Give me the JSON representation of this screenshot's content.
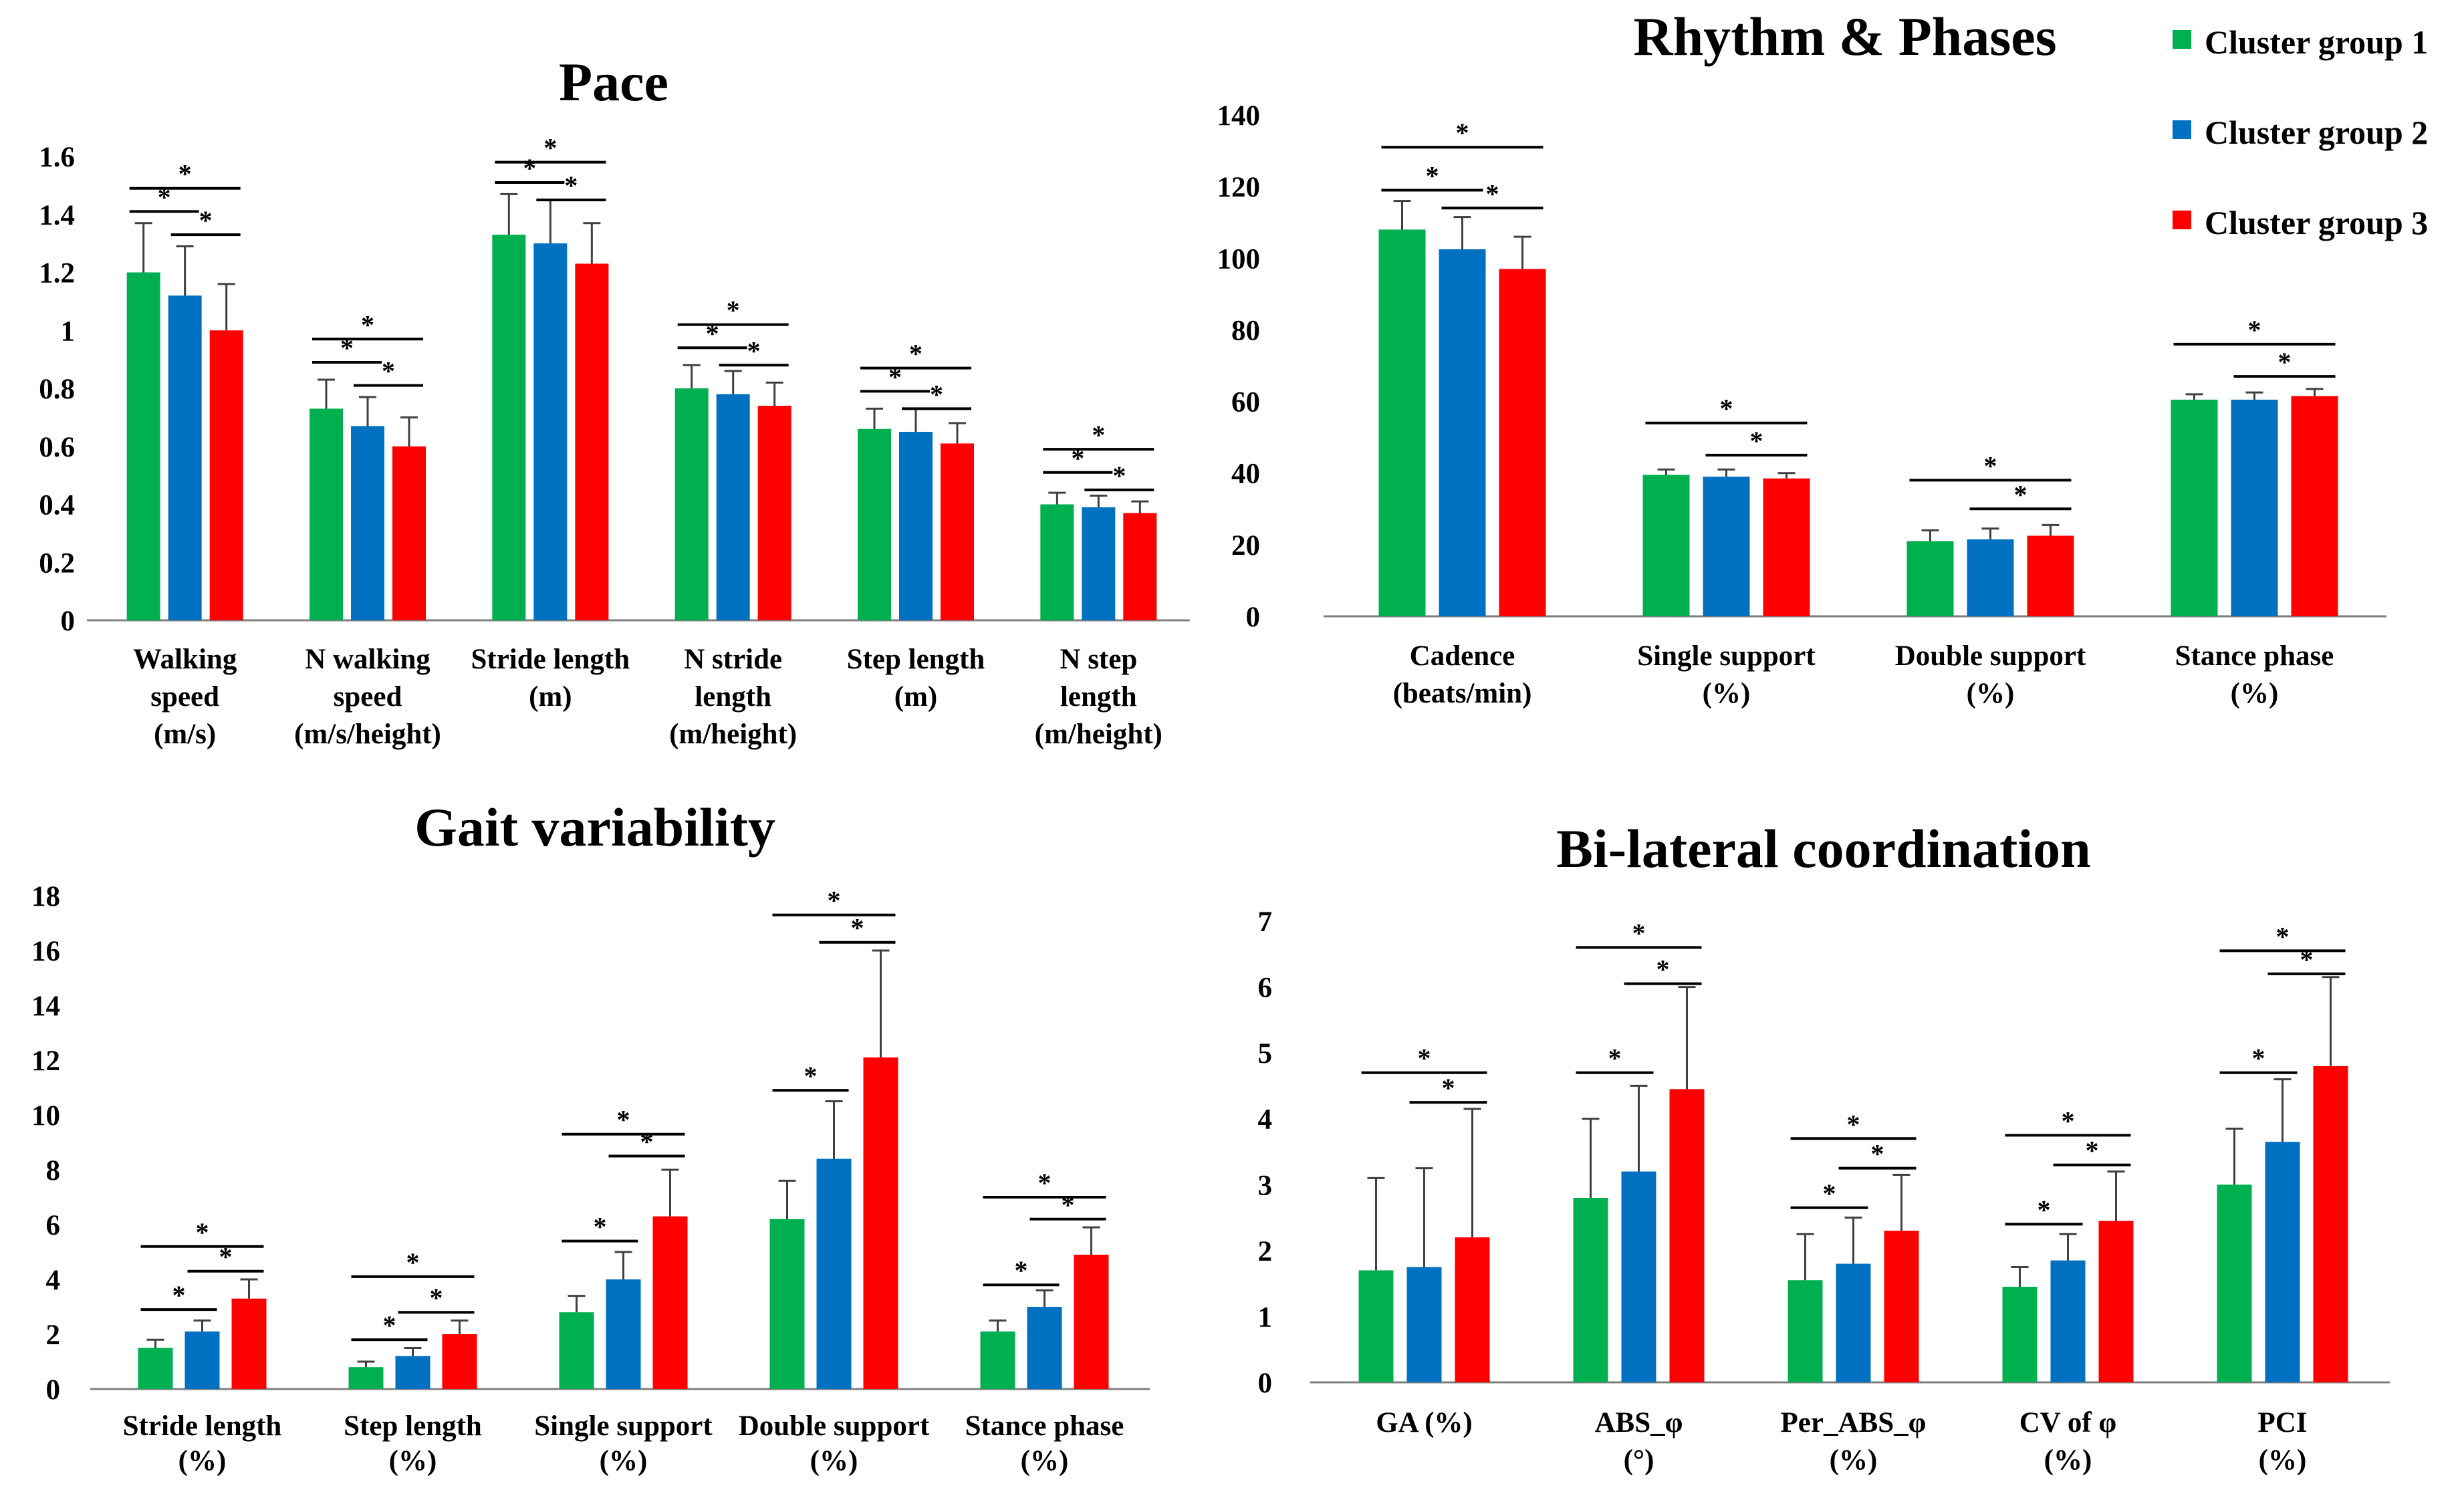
{
  "figure": {
    "legend": [
      {
        "name": "Cluster group 1",
        "color": "#00B050"
      },
      {
        "name": "Cluster group 2",
        "color": "#0070C0"
      },
      {
        "name": "Cluster group 3",
        "color": "#FF0000"
      }
    ]
  },
  "chart_data": [
    {
      "id": "pace",
      "type": "bar",
      "title": "Pace",
      "ylim": [
        0,
        1.6
      ],
      "yticks": [
        "0",
        "0.2",
        "0.4",
        "0.6",
        "0.8",
        "1",
        "1.2",
        "1.4",
        "1.6"
      ],
      "categories": [
        [
          "Walking",
          "speed",
          "(m/s)"
        ],
        [
          "N walking",
          "speed",
          "(m/s/height)"
        ],
        [
          "Stride length",
          "(m)"
        ],
        [
          "N stride",
          "length",
          "(m/height)"
        ],
        [
          "Step length",
          "(m)"
        ],
        [
          "N step",
          "length",
          "(m/height)"
        ]
      ],
      "series": [
        {
          "name": "Cluster group 1",
          "values": [
            1.2,
            0.73,
            1.33,
            0.8,
            0.66,
            0.4
          ],
          "error": [
            0.17,
            0.1,
            0.14,
            0.08,
            0.07,
            0.04
          ]
        },
        {
          "name": "Cluster group 2",
          "values": [
            1.12,
            0.67,
            1.3,
            0.78,
            0.65,
            0.39
          ],
          "error": [
            0.17,
            0.1,
            0.15,
            0.08,
            0.08,
            0.04
          ]
        },
        {
          "name": "Cluster group 3",
          "values": [
            1.0,
            0.6,
            1.23,
            0.74,
            0.61,
            0.37
          ],
          "error": [
            0.16,
            0.1,
            0.14,
            0.08,
            0.07,
            0.04
          ]
        }
      ],
      "significance": [
        {
          "cat": 0,
          "from": 0,
          "to": 1,
          "y": 1.41,
          "label": "*"
        },
        {
          "cat": 0,
          "from": 1,
          "to": 2,
          "y": 1.33,
          "label": "*"
        },
        {
          "cat": 0,
          "from": 0,
          "to": 2,
          "y": 1.49,
          "label": "*"
        },
        {
          "cat": 1,
          "from": 0,
          "to": 1,
          "y": 0.89,
          "label": "*"
        },
        {
          "cat": 1,
          "from": 1,
          "to": 2,
          "y": 0.81,
          "label": "*"
        },
        {
          "cat": 1,
          "from": 0,
          "to": 2,
          "y": 0.97,
          "label": "*"
        },
        {
          "cat": 2,
          "from": 0,
          "to": 1,
          "y": 1.51,
          "label": "*"
        },
        {
          "cat": 2,
          "from": 1,
          "to": 2,
          "y": 1.45,
          "label": "*"
        },
        {
          "cat": 2,
          "from": 0,
          "to": 2,
          "y": 1.58,
          "label": "*"
        },
        {
          "cat": 3,
          "from": 0,
          "to": 1,
          "y": 0.94,
          "label": "*"
        },
        {
          "cat": 3,
          "from": 1,
          "to": 2,
          "y": 0.88,
          "label": "*"
        },
        {
          "cat": 3,
          "from": 0,
          "to": 2,
          "y": 1.02,
          "label": "*"
        },
        {
          "cat": 4,
          "from": 0,
          "to": 1,
          "y": 0.79,
          "label": "*"
        },
        {
          "cat": 4,
          "from": 1,
          "to": 2,
          "y": 0.73,
          "label": "*"
        },
        {
          "cat": 4,
          "from": 0,
          "to": 2,
          "y": 0.87,
          "label": "*"
        },
        {
          "cat": 5,
          "from": 0,
          "to": 1,
          "y": 0.51,
          "label": "*"
        },
        {
          "cat": 5,
          "from": 1,
          "to": 2,
          "y": 0.45,
          "label": "*"
        },
        {
          "cat": 5,
          "from": 0,
          "to": 2,
          "y": 0.59,
          "label": "*"
        }
      ]
    },
    {
      "id": "rhythm",
      "type": "bar",
      "title": "Rhythm & Phases",
      "ylim": [
        0,
        140
      ],
      "yticks": [
        "0",
        "20",
        "40",
        "60",
        "80",
        "100",
        "120",
        "140"
      ],
      "categories": [
        [
          "Cadence",
          "(beats/min)"
        ],
        [
          "Single support",
          "(%)"
        ],
        [
          "Double support",
          "(%)"
        ],
        [
          "Stance phase",
          "(%)"
        ]
      ],
      "series": [
        {
          "name": "Cluster group 1",
          "values": [
            108,
            39.5,
            21,
            60.5
          ],
          "error": [
            8,
            1.5,
            3,
            1.5
          ]
        },
        {
          "name": "Cluster group 2",
          "values": [
            102.5,
            39,
            21.5,
            60.5
          ],
          "error": [
            9,
            2,
            3,
            2
          ]
        },
        {
          "name": "Cluster group 3",
          "values": [
            97,
            38.5,
            22.5,
            61.5
          ],
          "error": [
            9,
            1.5,
            3,
            2
          ]
        }
      ],
      "significance": [
        {
          "cat": 0,
          "from": 0,
          "to": 1,
          "y": 119,
          "label": "*"
        },
        {
          "cat": 0,
          "from": 1,
          "to": 2,
          "y": 114,
          "label": "*"
        },
        {
          "cat": 0,
          "from": 0,
          "to": 2,
          "y": 131,
          "label": "*"
        },
        {
          "cat": 1,
          "from": 1,
          "to": 2,
          "y": 45,
          "label": "*"
        },
        {
          "cat": 1,
          "from": 0,
          "to": 2,
          "y": 54,
          "label": "*"
        },
        {
          "cat": 2,
          "from": 1,
          "to": 2,
          "y": 30,
          "label": "*"
        },
        {
          "cat": 2,
          "from": 0,
          "to": 2,
          "y": 38,
          "label": "*"
        },
        {
          "cat": 3,
          "from": 1,
          "to": 2,
          "y": 67,
          "label": "*"
        },
        {
          "cat": 3,
          "from": 0,
          "to": 2,
          "y": 76,
          "label": "*"
        }
      ]
    },
    {
      "id": "variability",
      "type": "bar",
      "title": "Gait variability",
      "ylim": [
        0,
        18
      ],
      "yticks": [
        "0",
        "2",
        "4",
        "6",
        "8",
        "10",
        "12",
        "14",
        "16",
        "18"
      ],
      "categories": [
        [
          "Stride length",
          "(%)"
        ],
        [
          "Step length",
          "(%)"
        ],
        [
          "Single support",
          "(%)"
        ],
        [
          "Double support",
          "(%)"
        ],
        [
          "Stance phase",
          "(%)"
        ]
      ],
      "series": [
        {
          "name": "Cluster group 1",
          "values": [
            1.5,
            0.8,
            2.8,
            6.2,
            2.1
          ],
          "error": [
            0.3,
            0.2,
            0.6,
            1.4,
            0.4
          ]
        },
        {
          "name": "Cluster group 2",
          "values": [
            2.1,
            1.2,
            4.0,
            8.4,
            3.0
          ],
          "error": [
            0.4,
            0.3,
            1.0,
            2.1,
            0.6
          ]
        },
        {
          "name": "Cluster group 3",
          "values": [
            3.3,
            2.0,
            6.3,
            12.1,
            4.9
          ],
          "error": [
            0.7,
            0.5,
            1.7,
            3.9,
            1.0
          ]
        }
      ],
      "significance": [
        {
          "cat": 0,
          "from": 0,
          "to": 1,
          "y": 2.9,
          "label": "*"
        },
        {
          "cat": 0,
          "from": 1,
          "to": 2,
          "y": 4.3,
          "label": "*"
        },
        {
          "cat": 0,
          "from": 0,
          "to": 2,
          "y": 5.2,
          "label": "*"
        },
        {
          "cat": 1,
          "from": 0,
          "to": 1,
          "y": 1.8,
          "label": "*"
        },
        {
          "cat": 1,
          "from": 1,
          "to": 2,
          "y": 2.8,
          "label": "*"
        },
        {
          "cat": 1,
          "from": 0,
          "to": 2,
          "y": 4.1,
          "label": "*"
        },
        {
          "cat": 2,
          "from": 0,
          "to": 1,
          "y": 5.4,
          "label": "*"
        },
        {
          "cat": 2,
          "from": 1,
          "to": 2,
          "y": 8.5,
          "label": "*"
        },
        {
          "cat": 2,
          "from": 0,
          "to": 2,
          "y": 9.3,
          "label": "*"
        },
        {
          "cat": 3,
          "from": 0,
          "to": 1,
          "y": 10.9,
          "label": "*"
        },
        {
          "cat": 3,
          "from": 1,
          "to": 2,
          "y": 16.3,
          "label": "*"
        },
        {
          "cat": 3,
          "from": 0,
          "to": 2,
          "y": 17.3,
          "label": "*"
        },
        {
          "cat": 4,
          "from": 0,
          "to": 1,
          "y": 3.8,
          "label": "*"
        },
        {
          "cat": 4,
          "from": 1,
          "to": 2,
          "y": 6.2,
          "label": "*"
        },
        {
          "cat": 4,
          "from": 0,
          "to": 2,
          "y": 7.0,
          "label": "*"
        }
      ]
    },
    {
      "id": "bilateral",
      "type": "bar",
      "title": "Bi-lateral coordination",
      "ylim": [
        0,
        7
      ],
      "yticks": [
        "0",
        "1",
        "2",
        "3",
        "4",
        "5",
        "6",
        "7"
      ],
      "categories": [
        [
          "GA (%)"
        ],
        [
          "ABS_φ",
          "(°)"
        ],
        [
          "Per_ABS_φ",
          "(%)"
        ],
        [
          "CV of φ",
          "(%)"
        ],
        [
          "PCI",
          "(%)"
        ]
      ],
      "series": [
        {
          "name": "Cluster group 1",
          "values": [
            1.7,
            2.8,
            1.55,
            1.45,
            3.0
          ],
          "error": [
            1.4,
            1.2,
            0.7,
            0.3,
            0.85
          ]
        },
        {
          "name": "Cluster group 2",
          "values": [
            1.75,
            3.2,
            1.8,
            1.85,
            3.65
          ],
          "error": [
            1.5,
            1.3,
            0.7,
            0.4,
            0.95
          ]
        },
        {
          "name": "Cluster group 3",
          "values": [
            2.2,
            4.45,
            2.3,
            2.45,
            4.8
          ],
          "error": [
            1.95,
            1.55,
            0.85,
            0.75,
            1.35
          ]
        }
      ],
      "significance": [
        {
          "cat": 0,
          "from": 1,
          "to": 2,
          "y": 4.25,
          "label": "*"
        },
        {
          "cat": 0,
          "from": 0,
          "to": 2,
          "y": 4.7,
          "label": "*"
        },
        {
          "cat": 1,
          "from": 0,
          "to": 1,
          "y": 4.7,
          "label": "*"
        },
        {
          "cat": 1,
          "from": 1,
          "to": 2,
          "y": 6.05,
          "label": "*"
        },
        {
          "cat": 1,
          "from": 0,
          "to": 2,
          "y": 6.6,
          "label": "*"
        },
        {
          "cat": 2,
          "from": 0,
          "to": 1,
          "y": 2.65,
          "label": "*"
        },
        {
          "cat": 2,
          "from": 1,
          "to": 2,
          "y": 3.25,
          "label": "*"
        },
        {
          "cat": 2,
          "from": 0,
          "to": 2,
          "y": 3.7,
          "label": "*"
        },
        {
          "cat": 3,
          "from": 0,
          "to": 1,
          "y": 2.4,
          "label": "*"
        },
        {
          "cat": 3,
          "from": 1,
          "to": 2,
          "y": 3.3,
          "label": "*"
        },
        {
          "cat": 3,
          "from": 0,
          "to": 2,
          "y": 3.75,
          "label": "*"
        },
        {
          "cat": 4,
          "from": 0,
          "to": 1,
          "y": 4.7,
          "label": "*"
        },
        {
          "cat": 4,
          "from": 1,
          "to": 2,
          "y": 6.2,
          "label": "*"
        },
        {
          "cat": 4,
          "from": 0,
          "to": 2,
          "y": 6.55,
          "label": "*"
        }
      ]
    }
  ]
}
